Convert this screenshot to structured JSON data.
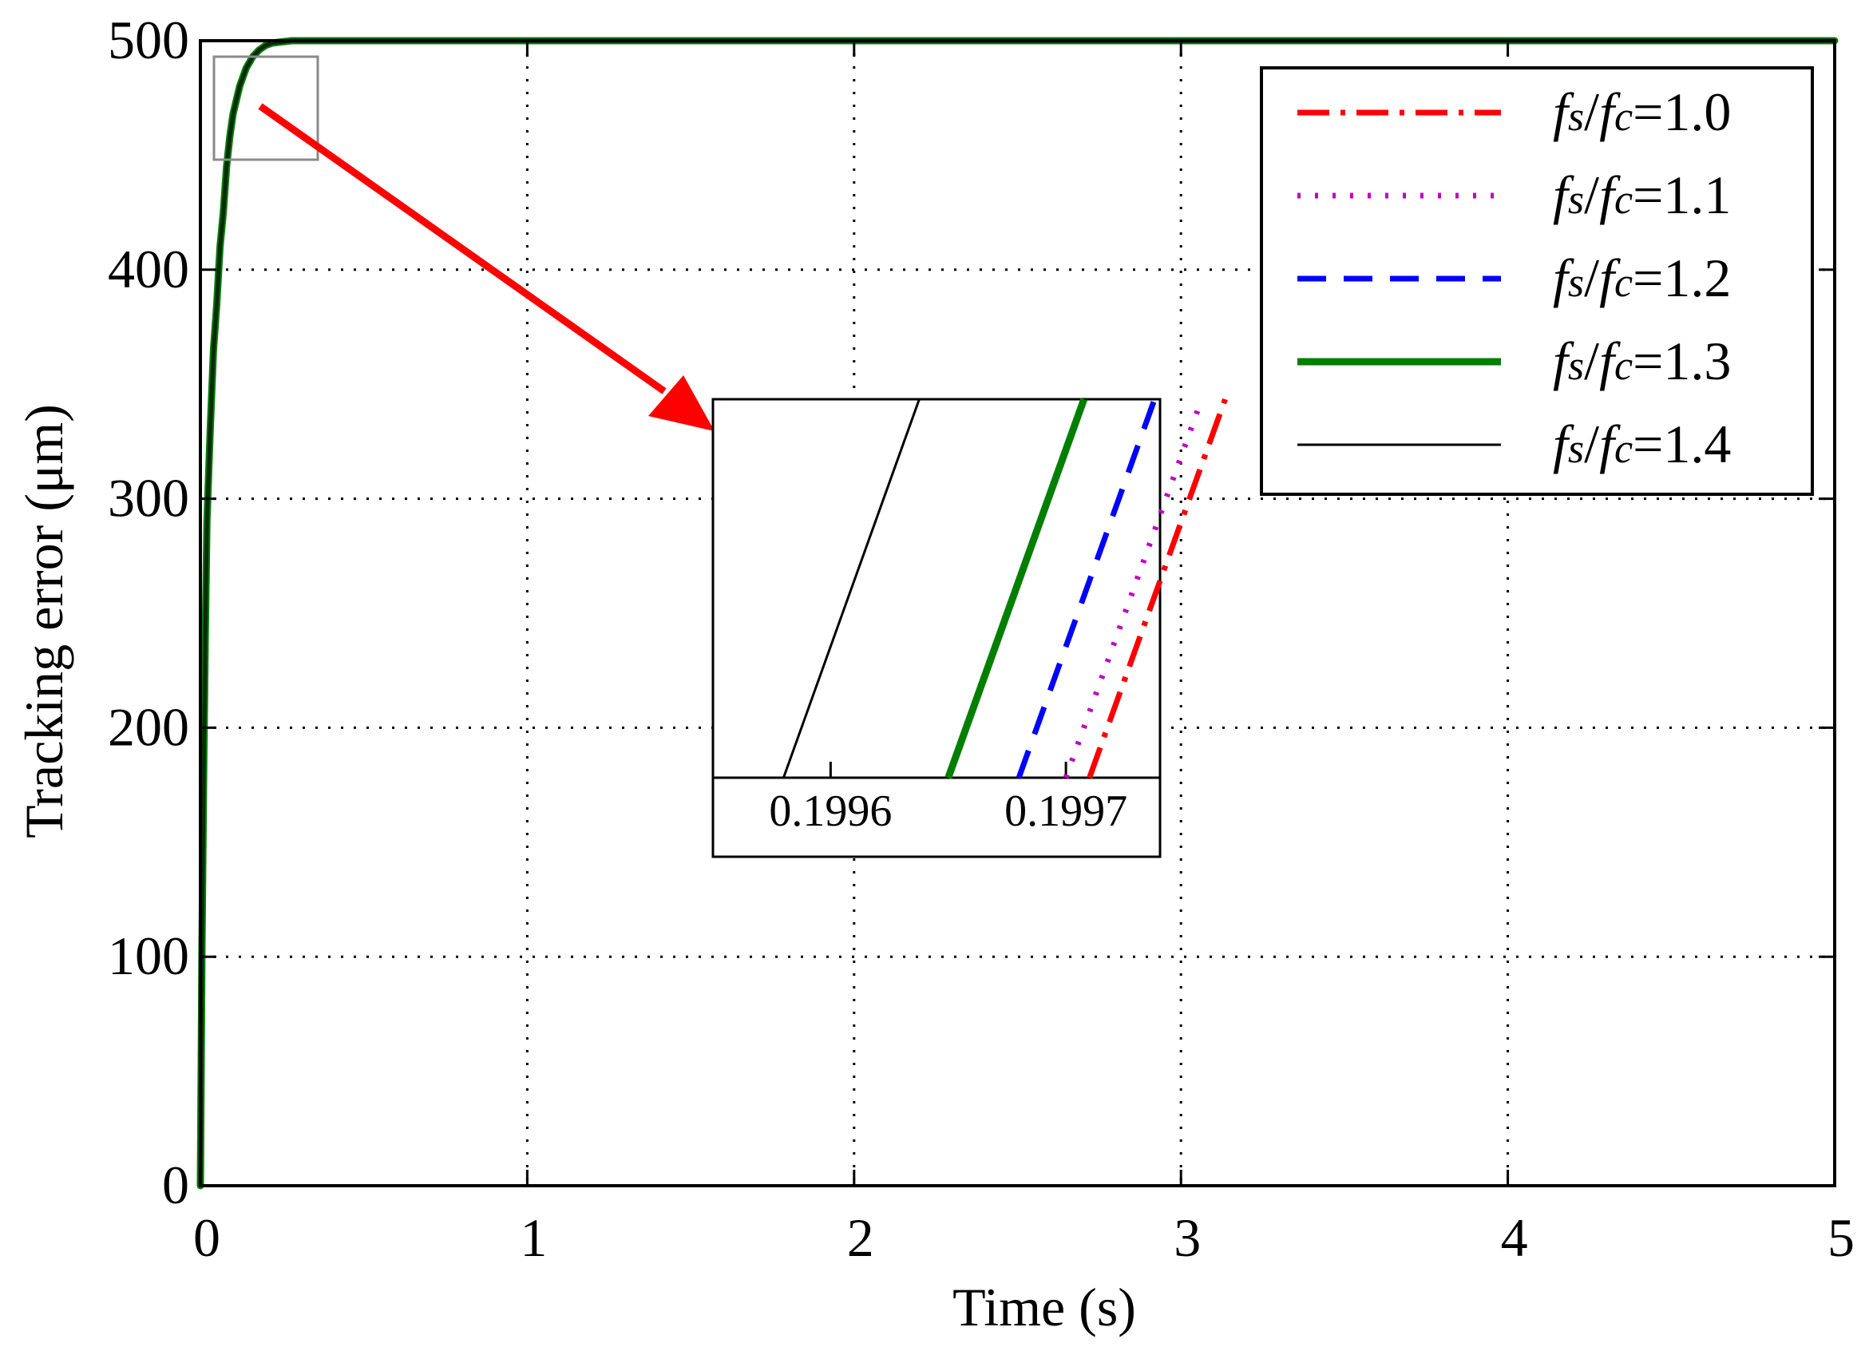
{
  "colors": {
    "fs_fc_1_0": "#ff0000",
    "fs_fc_1_1": "#c000c0",
    "fs_fc_1_2": "#0000ff",
    "fs_fc_1_3": "#007f00",
    "fs_fc_1_4": "#000000",
    "arrow": "#ff0000"
  },
  "chart_data": {
    "type": "line",
    "xlabel": "Time (s)",
    "ylabel": "Tracking error (μm)",
    "xlim": [
      0,
      5
    ],
    "ylim": [
      0,
      500
    ],
    "xticks": [
      "0",
      "1",
      "2",
      "3",
      "4",
      "5"
    ],
    "yticks": [
      "0",
      "100",
      "200",
      "300",
      "400",
      "500"
    ],
    "grid": true,
    "legend_position": "top-right",
    "series": [
      {
        "name": "fs/fc=1.0",
        "label_parts": [
          "f",
          "s",
          "/",
          "f",
          "c",
          "=1.0"
        ],
        "style": "dashdot",
        "color": "#ff0000"
      },
      {
        "name": "fs/fc=1.1",
        "label_parts": [
          "f",
          "s",
          "/",
          "f",
          "c",
          "=1.1"
        ],
        "style": "dotted",
        "color": "#c000c0"
      },
      {
        "name": "fs/fc=1.2",
        "label_parts": [
          "f",
          "s",
          "/",
          "f",
          "c",
          "=1.2"
        ],
        "style": "dashed",
        "color": "#0000ff"
      },
      {
        "name": "fs/fc=1.3",
        "label_parts": [
          "f",
          "s",
          "/",
          "f",
          "c",
          "=1.3"
        ],
        "style": "solid-thick",
        "color": "#007f00"
      },
      {
        "name": "fs/fc=1.4",
        "label_parts": [
          "f",
          "s",
          "/",
          "f",
          "c",
          "=1.4"
        ],
        "style": "solid-thin",
        "color": "#000000"
      }
    ],
    "x": [
      0,
      0.005,
      0.01,
      0.015,
      0.02,
      0.03,
      0.04,
      0.05,
      0.06,
      0.07,
      0.08,
      0.09,
      0.1,
      0.12,
      0.14,
      0.16,
      0.18,
      0.2,
      0.22,
      0.25,
      0.28,
      0.3,
      0.35,
      0.5,
      1,
      2,
      3,
      4,
      5
    ],
    "y": [
      0,
      105,
      180,
      240,
      290,
      330,
      365,
      385,
      410,
      425,
      445,
      458,
      468,
      480,
      488,
      493,
      496,
      498,
      499,
      499.5,
      500,
      500,
      500,
      500,
      500,
      500,
      500,
      500,
      500
    ],
    "inset": {
      "xticks": [
        "0.1996",
        "0.1997"
      ],
      "xlim": [
        0.19955,
        0.19974
      ],
      "line_bottom_x": [
        0.19971,
        0.1997,
        0.19968,
        0.19965,
        0.19958
      ]
    }
  }
}
